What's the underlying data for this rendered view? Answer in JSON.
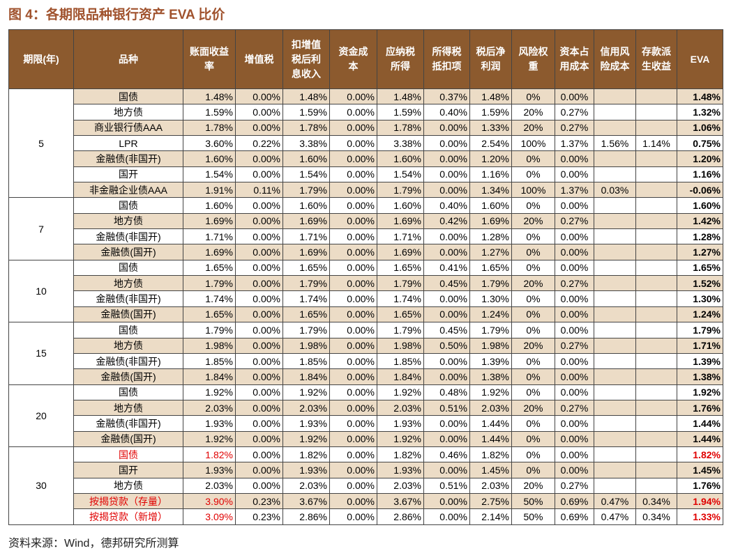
{
  "header": {
    "title": "图 4：各期限品种银行资产 EVA 比价"
  },
  "table": {
    "columns": [
      [
        "期限(年)"
      ],
      [
        "品种"
      ],
      [
        "账面收益",
        "率"
      ],
      [
        "增值税"
      ],
      [
        "扣增值",
        "税后利",
        "息收入"
      ],
      [
        "资金成",
        "本"
      ],
      [
        "应纳税",
        "所得"
      ],
      [
        "所得税",
        "抵扣项"
      ],
      [
        "税后净",
        "利润"
      ],
      [
        "风险权",
        "重"
      ],
      [
        "资本占",
        "用成本"
      ],
      [
        "信用风",
        "险成本"
      ],
      [
        "存款派",
        "生收益"
      ],
      [
        "EVA"
      ]
    ],
    "groups": [
      {
        "period": "5",
        "rows": [
          {
            "name": "国债",
            "cells": [
              "1.48%",
              "0.00%",
              "1.48%",
              "0.00%",
              "1.48%",
              "0.37%",
              "1.48%",
              "0%",
              "0.00%",
              null,
              null,
              "1.48%"
            ]
          },
          {
            "name": "地方债",
            "cells": [
              "1.59%",
              "0.00%",
              "1.59%",
              "0.00%",
              "1.59%",
              "0.40%",
              "1.59%",
              "20%",
              "0.27%",
              null,
              null,
              "1.32%"
            ]
          },
          {
            "name": "商业银行债AAA",
            "cells": [
              "1.78%",
              "0.00%",
              "1.78%",
              "0.00%",
              "1.78%",
              "0.00%",
              "1.33%",
              "20%",
              "0.27%",
              null,
              null,
              "1.06%"
            ]
          },
          {
            "name": "LPR",
            "cells": [
              "3.60%",
              "0.22%",
              "3.38%",
              "0.00%",
              "3.38%",
              "0.00%",
              "2.54%",
              "100%",
              "1.37%",
              "1.56%",
              "1.14%",
              "0.75%"
            ]
          },
          {
            "name": "金融债(非国开)",
            "cells": [
              "1.60%",
              "0.00%",
              "1.60%",
              "0.00%",
              "1.60%",
              "0.00%",
              "1.20%",
              "0%",
              "0.00%",
              null,
              null,
              "1.20%"
            ]
          },
          {
            "name": "国开",
            "cells": [
              "1.54%",
              "0.00%",
              "1.54%",
              "0.00%",
              "1.54%",
              "0.00%",
              "1.16%",
              "0%",
              "0.00%",
              null,
              null,
              "1.16%"
            ]
          },
          {
            "name": "非金融企业债AAA",
            "cells": [
              "1.91%",
              "0.11%",
              "1.79%",
              "0.00%",
              "1.79%",
              "0.00%",
              "1.34%",
              "100%",
              "1.37%",
              "0.03%",
              null,
              "-0.06%"
            ]
          }
        ]
      },
      {
        "period": "7",
        "rows": [
          {
            "name": "国债",
            "cells": [
              "1.60%",
              "0.00%",
              "1.60%",
              "0.00%",
              "1.60%",
              "0.40%",
              "1.60%",
              "0%",
              "0.00%",
              null,
              null,
              "1.60%"
            ]
          },
          {
            "name": "地方债",
            "cells": [
              "1.69%",
              "0.00%",
              "1.69%",
              "0.00%",
              "1.69%",
              "0.42%",
              "1.69%",
              "20%",
              "0.27%",
              null,
              null,
              "1.42%"
            ]
          },
          {
            "name": "金融债(非国开)",
            "cells": [
              "1.71%",
              "0.00%",
              "1.71%",
              "0.00%",
              "1.71%",
              "0.00%",
              "1.28%",
              "0%",
              "0.00%",
              null,
              null,
              "1.28%"
            ]
          },
          {
            "name": "金融债(国开)",
            "cells": [
              "1.69%",
              "0.00%",
              "1.69%",
              "0.00%",
              "1.69%",
              "0.00%",
              "1.27%",
              "0%",
              "0.00%",
              null,
              null,
              "1.27%"
            ]
          }
        ]
      },
      {
        "period": "10",
        "rows": [
          {
            "name": "国债",
            "cells": [
              "1.65%",
              "0.00%",
              "1.65%",
              "0.00%",
              "1.65%",
              "0.41%",
              "1.65%",
              "0%",
              "0.00%",
              null,
              null,
              "1.65%"
            ]
          },
          {
            "name": "地方债",
            "cells": [
              "1.79%",
              "0.00%",
              "1.79%",
              "0.00%",
              "1.79%",
              "0.45%",
              "1.79%",
              "20%",
              "0.27%",
              null,
              null,
              "1.52%"
            ]
          },
          {
            "name": "金融债(非国开)",
            "cells": [
              "1.74%",
              "0.00%",
              "1.74%",
              "0.00%",
              "1.74%",
              "0.00%",
              "1.30%",
              "0%",
              "0.00%",
              null,
              null,
              "1.30%"
            ]
          },
          {
            "name": "金融债(国开)",
            "cells": [
              "1.65%",
              "0.00%",
              "1.65%",
              "0.00%",
              "1.65%",
              "0.00%",
              "1.24%",
              "0%",
              "0.00%",
              null,
              null,
              "1.24%"
            ]
          }
        ]
      },
      {
        "period": "15",
        "rows": [
          {
            "name": "国债",
            "cells": [
              "1.79%",
              "0.00%",
              "1.79%",
              "0.00%",
              "1.79%",
              "0.45%",
              "1.79%",
              "0%",
              "0.00%",
              null,
              null,
              "1.79%"
            ]
          },
          {
            "name": "地方债",
            "cells": [
              "1.98%",
              "0.00%",
              "1.98%",
              "0.00%",
              "1.98%",
              "0.50%",
              "1.98%",
              "20%",
              "0.27%",
              null,
              null,
              "1.71%"
            ]
          },
          {
            "name": "金融债(非国开)",
            "cells": [
              "1.85%",
              "0.00%",
              "1.85%",
              "0.00%",
              "1.85%",
              "0.00%",
              "1.39%",
              "0%",
              "0.00%",
              null,
              null,
              "1.39%"
            ]
          },
          {
            "name": "金融债(国开)",
            "cells": [
              "1.84%",
              "0.00%",
              "1.84%",
              "0.00%",
              "1.84%",
              "0.00%",
              "1.38%",
              "0%",
              "0.00%",
              null,
              null,
              "1.38%"
            ]
          }
        ]
      },
      {
        "period": "20",
        "rows": [
          {
            "name": "国债",
            "cells": [
              "1.92%",
              "0.00%",
              "1.92%",
              "0.00%",
              "1.92%",
              "0.48%",
              "1.92%",
              "0%",
              "0.00%",
              null,
              null,
              "1.92%"
            ]
          },
          {
            "name": "地方债",
            "cells": [
              "2.03%",
              "0.00%",
              "2.03%",
              "0.00%",
              "2.03%",
              "0.51%",
              "2.03%",
              "20%",
              "0.27%",
              null,
              null,
              "1.76%"
            ]
          },
          {
            "name": "金融债(非国开)",
            "cells": [
              "1.93%",
              "0.00%",
              "1.93%",
              "0.00%",
              "1.93%",
              "0.00%",
              "1.44%",
              "0%",
              "0.00%",
              null,
              null,
              "1.44%"
            ]
          },
          {
            "name": "金融债(国开)",
            "cells": [
              "1.92%",
              "0.00%",
              "1.92%",
              "0.00%",
              "1.92%",
              "0.00%",
              "1.44%",
              "0%",
              "0.00%",
              null,
              null,
              "1.44%"
            ]
          }
        ]
      },
      {
        "period": "30",
        "rows": [
          {
            "name": "国债",
            "red": true,
            "cells": [
              "1.82%",
              "0.00%",
              "1.82%",
              "0.00%",
              "1.82%",
              "0.46%",
              "1.82%",
              "0%",
              "0.00%",
              null,
              null,
              "1.82%"
            ]
          },
          {
            "name": "国开",
            "cells": [
              "1.93%",
              "0.00%",
              "1.93%",
              "0.00%",
              "1.93%",
              "0.00%",
              "1.45%",
              "0%",
              "0.00%",
              null,
              null,
              "1.45%"
            ]
          },
          {
            "name": "地方债",
            "cells": [
              "2.03%",
              "0.00%",
              "2.03%",
              "0.00%",
              "2.03%",
              "0.51%",
              "2.03%",
              "20%",
              "0.27%",
              null,
              null,
              "1.76%"
            ]
          },
          {
            "name": "按揭贷款（存量）",
            "red": true,
            "cells": [
              "3.90%",
              "0.23%",
              "3.67%",
              "0.00%",
              "3.67%",
              "0.00%",
              "2.75%",
              "50%",
              "0.69%",
              "0.47%",
              "0.34%",
              "1.94%"
            ]
          },
          {
            "name": "按揭贷款（新增）",
            "red": true,
            "cells": [
              "3.09%",
              "0.23%",
              "2.86%",
              "0.00%",
              "2.86%",
              "0.00%",
              "2.14%",
              "50%",
              "0.69%",
              "0.47%",
              "0.34%",
              "1.33%"
            ]
          }
        ]
      }
    ]
  },
  "footer": {
    "source": "资料来源：Wind，德邦研究所测算"
  }
}
